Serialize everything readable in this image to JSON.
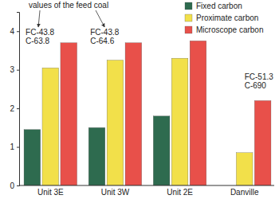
{
  "chart_data": {
    "type": "bar",
    "categories": [
      "Unit 3E",
      "Unit 3W",
      "Unit 2E",
      "Danville"
    ],
    "series": [
      {
        "name": "Fixed carbon",
        "color": "#2e6b4f",
        "values": [
          1.45,
          1.5,
          1.8,
          null
        ]
      },
      {
        "name": "Proximate carbon",
        "color": "#f2e04a",
        "values": [
          3.05,
          3.25,
          3.3,
          0.85
        ]
      },
      {
        "name": "Microscope carbon",
        "color": "#e8504a",
        "values": [
          3.7,
          3.7,
          3.75,
          2.2
        ]
      }
    ],
    "ylim": [
      0,
      4.5
    ],
    "yticks": [
      0,
      1,
      2,
      3,
      4
    ],
    "legend": "top-right",
    "annotations": [
      "values of the feed coal",
      "FC-43.8",
      "C-63.8",
      "FC-43.8",
      "C-64.6",
      "FC-51.3",
      "C-690"
    ]
  }
}
